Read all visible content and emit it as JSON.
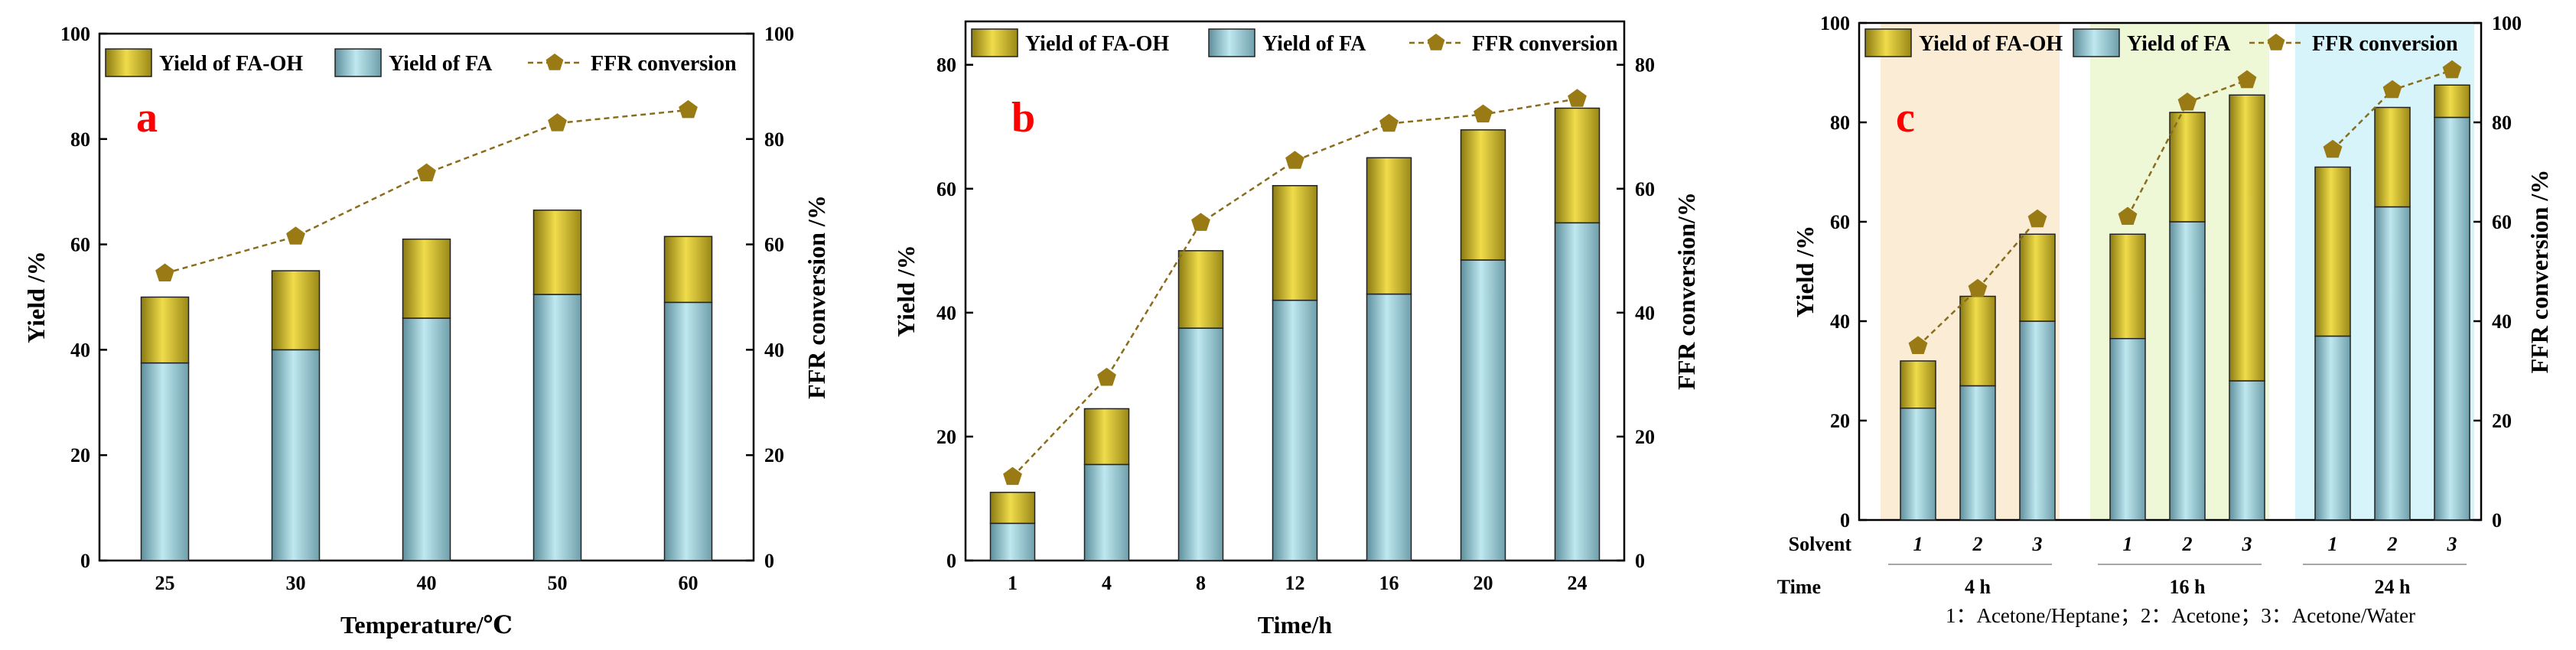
{
  "colors": {
    "fa": "#a9dce6",
    "fa_oh": "#e0cc3c",
    "line": "#8a6d1c",
    "marker": "#9a7a14",
    "bg_4h": "#fbecd6",
    "bg_16h": "#eef7d6",
    "bg_24h": "#d6f4fa"
  },
  "chart_data": [
    {
      "type": "bar",
      "panel_label": "a",
      "xlabel": "Temperature/℃",
      "ylabel": "Yield /%",
      "y2label": "FFR conversion /%",
      "ylim": [
        0,
        100
      ],
      "y2lim": [
        0,
        100
      ],
      "yticks": [
        0,
        20,
        40,
        60,
        80,
        100
      ],
      "y2ticks": [
        0,
        20,
        40,
        60,
        80,
        100
      ],
      "legend": {
        "fa_oh": "Yield of FA-OH",
        "fa": "Yield of FA",
        "ffr_conversion": "FFR conversion"
      },
      "categories": [
        "25",
        "30",
        "40",
        "50",
        "60"
      ],
      "series": [
        {
          "name": "Yield of FA",
          "values": [
            37.5,
            40,
            46,
            50.5,
            49
          ]
        },
        {
          "name": "Yield of FA-OH",
          "values": [
            12.5,
            15,
            15,
            16,
            12.5
          ]
        },
        {
          "name": "FFR conversion",
          "values": [
            54.5,
            61.5,
            73.5,
            83,
            85.5
          ]
        }
      ]
    },
    {
      "type": "bar",
      "panel_label": "b",
      "xlabel": "Time/h",
      "ylabel": "Yield /%",
      "y2label": "FFR conversion/%",
      "ylim": [
        0,
        87
      ],
      "y2lim": [
        0,
        87
      ],
      "yticks": [
        0,
        20,
        40,
        60,
        80
      ],
      "y2ticks": [
        0,
        20,
        40,
        60,
        80
      ],
      "legend": {
        "fa_oh": "Yield of FA-OH",
        "fa": "Yield of FA",
        "ffr_conversion": "FFR conversion"
      },
      "categories": [
        "1",
        "4",
        "8",
        "12",
        "16",
        "20",
        "24"
      ],
      "series": [
        {
          "name": "Yield of FA",
          "values": [
            6,
            15.5,
            37.5,
            42,
            43,
            48.5,
            54.5
          ]
        },
        {
          "name": "Yield of FA-OH",
          "values": [
            5,
            9,
            12.5,
            18.5,
            22,
            21,
            18.5
          ]
        },
        {
          "name": "FFR conversion",
          "values": [
            13.5,
            29.5,
            54.5,
            64.5,
            70.5,
            72,
            74.5
          ]
        }
      ]
    },
    {
      "type": "bar",
      "panel_label": "c",
      "ylabel": "Yield /%",
      "y2label": "FFR conversion /%",
      "ylim": [
        0,
        100
      ],
      "y2lim": [
        0,
        100
      ],
      "yticks": [
        0,
        20,
        40,
        60,
        80,
        100
      ],
      "y2ticks": [
        0,
        20,
        40,
        60,
        80,
        100
      ],
      "legend": {
        "fa_oh": "Yield of FA-OH",
        "fa": "Yield of FA",
        "ffr_conversion": "FFR conversion"
      },
      "row_labels": {
        "solvent": "Solvent",
        "time": "Time"
      },
      "groups": [
        {
          "time": "4 h",
          "solvents": [
            "1",
            "2",
            "3"
          ],
          "fa": [
            22.5,
            27,
            40
          ],
          "fa_oh": [
            9.5,
            18,
            17.5
          ],
          "ffr_conversion": [
            35,
            46.5,
            60.5
          ]
        },
        {
          "time": "16 h",
          "solvents": [
            "1",
            "2",
            "3"
          ],
          "fa": [
            36.5,
            60,
            28
          ],
          "fa_oh": [
            21,
            22,
            57.5
          ],
          "ffr_conversion": [
            61,
            84,
            88.5
          ]
        },
        {
          "time": "24 h",
          "solvents": [
            "1",
            "2",
            "3"
          ],
          "fa": [
            37,
            63,
            81
          ],
          "fa_oh": [
            34,
            20,
            6.5
          ],
          "ffr_conversion": [
            74.5,
            86.5,
            90.5
          ]
        }
      ],
      "footnote": "1：Acetone/Heptane；2：Acetone；3：Acetone/Water"
    }
  ]
}
